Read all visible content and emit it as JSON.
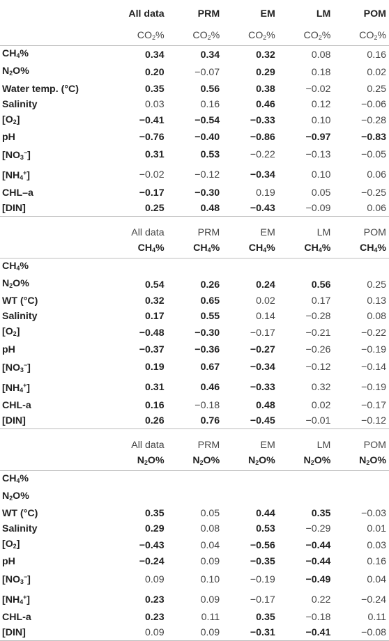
{
  "header": {
    "corner": "",
    "columns": [
      "All data",
      "PRM",
      "EM",
      "LM",
      "POM"
    ]
  },
  "sections": [
    {
      "variable_row": [
        "CO2%",
        "CO2%",
        "CO2%",
        "CO2%",
        "CO2%"
      ],
      "rows": [
        {
          "label": "CH4%",
          "values": [
            [
              "0.34",
              true
            ],
            [
              "0.34",
              true
            ],
            [
              "0.32",
              true
            ],
            [
              "0.08",
              false
            ],
            [
              "0.16",
              false
            ]
          ]
        },
        {
          "label": "N2O%",
          "values": [
            [
              "0.20",
              true
            ],
            [
              "−0.07",
              false
            ],
            [
              "0.29",
              true
            ],
            [
              "0.18",
              false
            ],
            [
              "0.02",
              false
            ]
          ]
        },
        {
          "label": "Water temp. (°C)",
          "values": [
            [
              "0.35",
              true
            ],
            [
              "0.56",
              true
            ],
            [
              "0.38",
              true
            ],
            [
              "−0.02",
              false
            ],
            [
              "0.25",
              false
            ]
          ]
        },
        {
          "label": "Salinity",
          "values": [
            [
              "0.03",
              false
            ],
            [
              "0.16",
              false
            ],
            [
              "0.46",
              true
            ],
            [
              "0.12",
              false
            ],
            [
              "−0.06",
              false
            ]
          ]
        },
        {
          "label": "[O2]",
          "values": [
            [
              "−0.41",
              true
            ],
            [
              "−0.54",
              true
            ],
            [
              "−0.33",
              true
            ],
            [
              "0.10",
              false
            ],
            [
              "−0.28",
              false
            ]
          ]
        },
        {
          "label": "pH",
          "values": [
            [
              "−0.76",
              true
            ],
            [
              "−0.40",
              true
            ],
            [
              "−0.86",
              true
            ],
            [
              "−0.97",
              true
            ],
            [
              "−0.83",
              true
            ]
          ]
        },
        {
          "label": "[NO3−]",
          "values": [
            [
              "0.31",
              true
            ],
            [
              "0.53",
              true
            ],
            [
              "−0.22",
              false
            ],
            [
              "−0.13",
              false
            ],
            [
              "−0.05",
              false
            ]
          ]
        },
        {
          "label": "[NH4+]",
          "values": [
            [
              "−0.02",
              false
            ],
            [
              "−0.12",
              false
            ],
            [
              "−0.34",
              true
            ],
            [
              "0.10",
              false
            ],
            [
              "0.06",
              false
            ]
          ]
        },
        {
          "label": "CHL–a",
          "values": [
            [
              "−0.17",
              true
            ],
            [
              "−0.30",
              true
            ],
            [
              "0.19",
              false
            ],
            [
              "0.05",
              false
            ],
            [
              "−0.25",
              false
            ]
          ]
        },
        {
          "label": "[DIN]",
          "values": [
            [
              "0.25",
              true
            ],
            [
              "0.48",
              true
            ],
            [
              "−0.43",
              true
            ],
            [
              "−0.09",
              false
            ],
            [
              "0.06",
              false
            ]
          ]
        }
      ]
    },
    {
      "group_row": [
        "All data",
        "PRM",
        "EM",
        "LM",
        "POM"
      ],
      "variable_row": [
        "CH4%",
        "CH4%",
        "CH4%",
        "CH4%",
        "CH4%"
      ],
      "rows": [
        {
          "label": "CH4%",
          "values": [
            [
              "",
              false
            ],
            [
              "",
              false
            ],
            [
              "",
              false
            ],
            [
              "",
              false
            ],
            [
              "",
              false
            ]
          ]
        },
        {
          "label": "N2O%",
          "values": [
            [
              "0.54",
              true
            ],
            [
              "0.26",
              true
            ],
            [
              "0.24",
              true
            ],
            [
              "0.56",
              true
            ],
            [
              "0.25",
              false
            ]
          ]
        },
        {
          "label": "WT (°C)",
          "values": [
            [
              "0.32",
              true
            ],
            [
              "0.65",
              true
            ],
            [
              "0.02",
              false
            ],
            [
              "0.17",
              false
            ],
            [
              "0.13",
              false
            ]
          ]
        },
        {
          "label": "Salinity",
          "values": [
            [
              "0.17",
              true
            ],
            [
              "0.55",
              true
            ],
            [
              "0.14",
              false
            ],
            [
              "−0.28",
              false
            ],
            [
              "0.08",
              false
            ]
          ]
        },
        {
          "label": "[O2]",
          "values": [
            [
              "−0.48",
              true
            ],
            [
              "−0.30",
              true
            ],
            [
              "−0.17",
              false
            ],
            [
              "−0.21",
              false
            ],
            [
              "−0.22",
              false
            ]
          ]
        },
        {
          "label": "pH",
          "values": [
            [
              "−0.37",
              true
            ],
            [
              "−0.36",
              true
            ],
            [
              "−0.27",
              true
            ],
            [
              "−0.26",
              false
            ],
            [
              "−0.19",
              false
            ]
          ]
        },
        {
          "label": "[NO3−]",
          "values": [
            [
              "0.19",
              true
            ],
            [
              "0.67",
              true
            ],
            [
              "−0.34",
              true
            ],
            [
              "−0.12",
              false
            ],
            [
              "−0.14",
              false
            ]
          ]
        },
        {
          "label": "[NH4+]",
          "values": [
            [
              "0.31",
              true
            ],
            [
              "0.46",
              true
            ],
            [
              "−0.33",
              true
            ],
            [
              "0.32",
              false
            ],
            [
              "−0.19",
              false
            ]
          ]
        },
        {
          "label": "CHL-a",
          "values": [
            [
              "0.16",
              true
            ],
            [
              "−0.18",
              false
            ],
            [
              "0.48",
              true
            ],
            [
              "0.02",
              false
            ],
            [
              "−0.17",
              false
            ]
          ]
        },
        {
          "label": "[DIN]",
          "values": [
            [
              "0.26",
              true
            ],
            [
              "0.76",
              true
            ],
            [
              "−0.45",
              true
            ],
            [
              "−0.01",
              false
            ],
            [
              "−0.12",
              false
            ]
          ]
        }
      ]
    },
    {
      "group_row": [
        "All data",
        "PRM",
        "EM",
        "LM",
        "POM"
      ],
      "variable_row": [
        "N2O%",
        "N2O%",
        "N2O%",
        "N2O%",
        "N2O%"
      ],
      "rows": [
        {
          "label": "CH4%",
          "values": [
            [
              "",
              false
            ],
            [
              "",
              false
            ],
            [
              "",
              false
            ],
            [
              "",
              false
            ],
            [
              "",
              false
            ]
          ]
        },
        {
          "label": "N2O%",
          "values": [
            [
              "",
              false
            ],
            [
              "",
              false
            ],
            [
              "",
              false
            ],
            [
              "",
              false
            ],
            [
              "",
              false
            ]
          ]
        },
        {
          "label": "WT (°C)",
          "values": [
            [
              "0.35",
              true
            ],
            [
              "0.05",
              false
            ],
            [
              "0.44",
              true
            ],
            [
              "0.35",
              true
            ],
            [
              "−0.03",
              false
            ]
          ]
        },
        {
          "label": "Salinity",
          "values": [
            [
              "0.29",
              true
            ],
            [
              "0.08",
              false
            ],
            [
              "0.53",
              true
            ],
            [
              "−0.29",
              false
            ],
            [
              "0.01",
              false
            ]
          ]
        },
        {
          "label": "[O2]",
          "values": [
            [
              "−0.43",
              true
            ],
            [
              "0.04",
              false
            ],
            [
              "−0.56",
              true
            ],
            [
              "−0.44",
              true
            ],
            [
              "0.03",
              false
            ]
          ]
        },
        {
          "label": "pH",
          "values": [
            [
              "−0.24",
              true
            ],
            [
              "0.09",
              false
            ],
            [
              "−0.35",
              true
            ],
            [
              "−0.44",
              true
            ],
            [
              "0.16",
              false
            ]
          ]
        },
        {
          "label": "[NO3−]",
          "values": [
            [
              "0.09",
              false
            ],
            [
              "0.10",
              false
            ],
            [
              "−0.19",
              false
            ],
            [
              "−0.49",
              true
            ],
            [
              "0.04",
              false
            ]
          ]
        },
        {
          "label": "[NH4+]",
          "values": [
            [
              "0.23",
              true
            ],
            [
              "0.09",
              false
            ],
            [
              "−0.17",
              false
            ],
            [
              "0.22",
              false
            ],
            [
              "−0.24",
              false
            ]
          ]
        },
        {
          "label": "CHL-a",
          "values": [
            [
              "0.23",
              true
            ],
            [
              "0.11",
              false
            ],
            [
              "0.35",
              true
            ],
            [
              "−0.18",
              false
            ],
            [
              "0.11",
              false
            ]
          ]
        },
        {
          "label": "[DIN]",
          "values": [
            [
              "0.09",
              false
            ],
            [
              "0.09",
              false
            ],
            [
              "−0.31",
              true
            ],
            [
              "−0.41",
              true
            ],
            [
              "−0.08",
              false
            ]
          ]
        }
      ]
    }
  ]
}
